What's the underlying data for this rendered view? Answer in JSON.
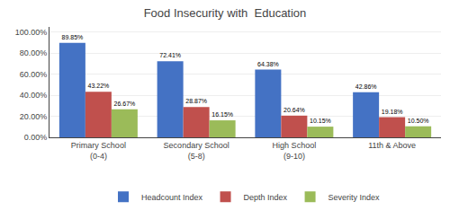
{
  "chart_data": {
    "type": "bar",
    "title": "Food Insecurity with  Education",
    "categories": [
      "Primary School\n(0-4)",
      "Secondary School\n(5-8)",
      "High School\n(9-10)",
      "11th & Above"
    ],
    "series": [
      {
        "name": "Headcount Index",
        "color": "#4472C4",
        "values": [
          89.85,
          72.41,
          64.38,
          42.86
        ],
        "value_labels": [
          "89.85%",
          "72.41%",
          "64.38%",
          "42.86%"
        ]
      },
      {
        "name": "Depth Index",
        "color": "#C0504D",
        "values": [
          43.22,
          28.87,
          20.64,
          19.18
        ],
        "value_labels": [
          "43.22%",
          "28.87%",
          "20.64%",
          "19.18%"
        ]
      },
      {
        "name": "Severity Index",
        "color": "#9BBB59",
        "values": [
          26.67,
          16.15,
          10.15,
          10.5
        ],
        "value_labels": [
          "26.67%",
          "16.15%",
          "10.15%",
          "10.50%"
        ]
      }
    ],
    "ylim": [
      0,
      105
    ],
    "yticks": [
      {
        "value": 0,
        "label": "0.00%"
      },
      {
        "value": 20,
        "label": "20.00%"
      },
      {
        "value": 40,
        "label": "40.00%"
      },
      {
        "value": 60,
        "label": "60.00%"
      },
      {
        "value": 80,
        "label": "80.00%"
      },
      {
        "value": 100,
        "label": "100.00%"
      }
    ],
    "grid": true,
    "legend": "bottom",
    "data_labels": true
  }
}
